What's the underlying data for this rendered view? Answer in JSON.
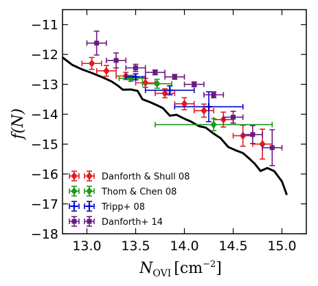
{
  "chart_data": {
    "type": "scatter",
    "title": "",
    "xlabel": {
      "main": "N",
      "sub": "OVI",
      "unit": "[cm",
      "exp": "−2",
      "unit_close": "]"
    },
    "ylabel": {
      "f": "f",
      "arg": "(N)"
    },
    "xlim": [
      12.75,
      15.25
    ],
    "ylim": [
      -18,
      -10.5
    ],
    "xticks": [
      13.0,
      13.5,
      14.0,
      14.5,
      15.0
    ],
    "xtick_labels": [
      "13.0",
      "13.5",
      "14.0",
      "14.5",
      "15.0"
    ],
    "yticks": [
      -18,
      -17,
      -16,
      -15,
      -14,
      -13,
      -12,
      -11
    ],
    "ytick_labels": [
      "−18",
      "−17",
      "−16",
      "−15",
      "−14",
      "−13",
      "−12",
      "−11"
    ],
    "grid": false,
    "legend_position": "lower-left",
    "series": [
      {
        "name": "Danforth & Shull 08",
        "color": "#e31a1c",
        "marker": "diamond",
        "points": [
          {
            "x": 13.05,
            "y": -12.3,
            "xerr": 0.1,
            "yerr": 0.2
          },
          {
            "x": 13.2,
            "y": -12.55,
            "xerr": 0.1,
            "yerr": 0.18
          },
          {
            "x": 13.4,
            "y": -12.72,
            "xerr": 0.1,
            "yerr": 0.12
          },
          {
            "x": 13.6,
            "y": -12.95,
            "xerr": 0.1,
            "yerr": 0.15
          },
          {
            "x": 13.8,
            "y": -13.3,
            "xerr": 0.1,
            "yerr": 0.15
          },
          {
            "x": 14.0,
            "y": -13.65,
            "xerr": 0.1,
            "yerr": 0.2
          },
          {
            "x": 14.2,
            "y": -13.88,
            "xerr": 0.1,
            "yerr": 0.22
          },
          {
            "x": 14.4,
            "y": -14.18,
            "xerr": 0.1,
            "yerr": 0.25
          },
          {
            "x": 14.6,
            "y": -14.72,
            "xerr": 0.1,
            "yerr": 0.35
          },
          {
            "x": 14.8,
            "y": -15.0,
            "xerr": 0.1,
            "yerr": 0.5
          }
        ]
      },
      {
        "name": "Thom & Chen 08",
        "color": "#1a9a1a",
        "marker": "diamond",
        "points": [
          {
            "x": 13.45,
            "y": -12.8,
            "xerr": 0.12,
            "yerr": 0.1
          },
          {
            "x": 13.72,
            "y": -12.98,
            "xerr": 0.15,
            "yerr": 0.15
          },
          {
            "x": 14.3,
            "y": -14.35,
            "xerr": 0.6,
            "yerr": 0.2
          }
        ]
      },
      {
        "name": "Tripp+ 08",
        "color": "#0000cc",
        "marker": "plus",
        "points": [
          {
            "x": 13.5,
            "y": -12.75,
            "xerr": 0.1,
            "yerr": 0.1
          },
          {
            "x": 13.85,
            "y": -13.2,
            "xerr": 0.25,
            "yerr": 0.15
          },
          {
            "x": 14.25,
            "y": -13.75,
            "xerr": 0.35,
            "yerr": 0.5
          }
        ]
      },
      {
        "name": "Danforth+ 14",
        "color": "#6b1a80",
        "marker": "square",
        "points": [
          {
            "x": 13.1,
            "y": -11.62,
            "xerr": 0.1,
            "yerr": 0.4
          },
          {
            "x": 13.3,
            "y": -12.2,
            "xerr": 0.1,
            "yerr": 0.25
          },
          {
            "x": 13.5,
            "y": -12.45,
            "xerr": 0.1,
            "yerr": 0.12
          },
          {
            "x": 13.7,
            "y": -12.6,
            "xerr": 0.1,
            "yerr": 0.08
          },
          {
            "x": 13.9,
            "y": -12.75,
            "xerr": 0.1,
            "yerr": 0.08
          },
          {
            "x": 14.1,
            "y": -13.0,
            "xerr": 0.1,
            "yerr": 0.08
          },
          {
            "x": 14.3,
            "y": -13.35,
            "xerr": 0.1,
            "yerr": 0.1
          },
          {
            "x": 14.5,
            "y": -14.1,
            "xerr": 0.1,
            "yerr": 0.2
          },
          {
            "x": 14.7,
            "y": -14.68,
            "xerr": 0.1,
            "yerr": 0.3
          },
          {
            "x": 14.9,
            "y": -15.12,
            "xerr": 0.1,
            "yerr": 0.6
          }
        ]
      }
    ],
    "model_line": {
      "color": "#000000",
      "points": [
        [
          12.75,
          -12.1
        ],
        [
          12.85,
          -12.35
        ],
        [
          12.95,
          -12.5
        ],
        [
          13.05,
          -12.62
        ],
        [
          13.15,
          -12.75
        ],
        [
          13.25,
          -12.9
        ],
        [
          13.32,
          -13.05
        ],
        [
          13.37,
          -13.18
        ],
        [
          13.45,
          -13.17
        ],
        [
          13.52,
          -13.22
        ],
        [
          13.57,
          -13.5
        ],
        [
          13.65,
          -13.6
        ],
        [
          13.72,
          -13.7
        ],
        [
          13.78,
          -13.8
        ],
        [
          13.85,
          -14.05
        ],
        [
          13.92,
          -14.02
        ],
        [
          14.0,
          -14.15
        ],
        [
          14.07,
          -14.25
        ],
        [
          14.15,
          -14.4
        ],
        [
          14.22,
          -14.45
        ],
        [
          14.3,
          -14.65
        ],
        [
          14.37,
          -14.8
        ],
        [
          14.45,
          -15.1
        ],
        [
          14.52,
          -15.2
        ],
        [
          14.6,
          -15.3
        ],
        [
          14.67,
          -15.5
        ],
        [
          14.72,
          -15.65
        ],
        [
          14.78,
          -15.9
        ],
        [
          14.85,
          -15.8
        ],
        [
          14.92,
          -15.9
        ],
        [
          15.0,
          -16.25
        ],
        [
          15.05,
          -16.7
        ]
      ]
    }
  }
}
